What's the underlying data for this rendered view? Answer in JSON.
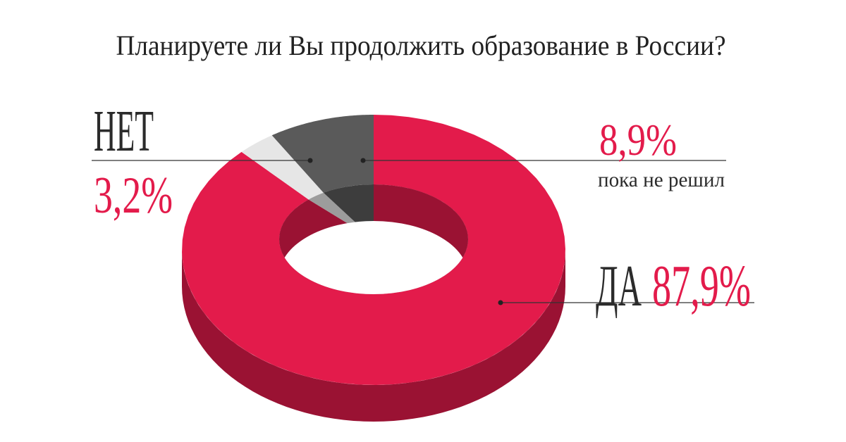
{
  "chart_data": {
    "type": "pie",
    "title": "Планируете ли Вы продолжить образование в России?",
    "categories": [
      "ДА",
      "НЕТ",
      "пока не решил"
    ],
    "values": [
      87.9,
      3.2,
      8.9
    ],
    "value_labels": [
      "87,9%",
      "3,2%",
      "8,9%"
    ],
    "colors": [
      "#e31b4b",
      "#e6e6e6",
      "#5a5a5a"
    ]
  }
}
